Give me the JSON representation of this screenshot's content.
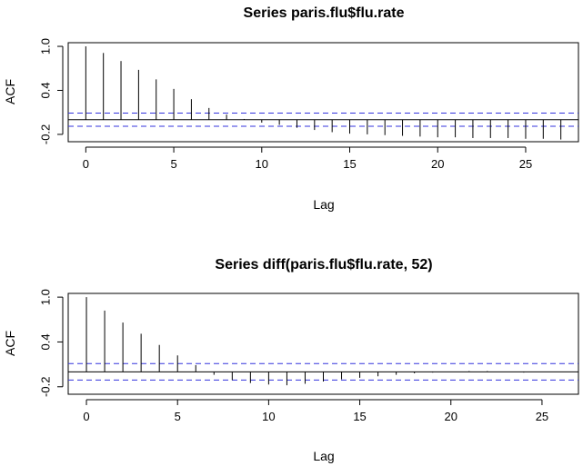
{
  "chart_data": [
    {
      "type": "bar",
      "title": "Series  paris.flu$flu.rate",
      "xlabel": "Lag",
      "ylabel": "ACF",
      "xlim": [
        -1,
        28
      ],
      "ylim": [
        -0.3,
        1.05
      ],
      "xticks": [
        0,
        5,
        10,
        15,
        20,
        25
      ],
      "xtick_labels": [
        "0",
        "5",
        "10",
        "15",
        "20",
        "25"
      ],
      "yticks": [
        -0.2,
        0.4,
        1.0
      ],
      "ytick_labels": [
        "-0.2",
        "0.4",
        "1.0"
      ],
      "conf_limit": 0.09,
      "lags": [
        0,
        1,
        2,
        3,
        4,
        5,
        6,
        7,
        8,
        9,
        10,
        11,
        12,
        13,
        14,
        15,
        16,
        17,
        18,
        19,
        20,
        21,
        22,
        23,
        24,
        25,
        26,
        27
      ],
      "acf": [
        1.0,
        0.91,
        0.8,
        0.68,
        0.55,
        0.42,
        0.28,
        0.16,
        0.07,
        0.01,
        -0.04,
        -0.07,
        -0.11,
        -0.14,
        -0.17,
        -0.19,
        -0.2,
        -0.21,
        -0.22,
        -0.23,
        -0.24,
        -0.24,
        -0.25,
        -0.25,
        -0.25,
        -0.26,
        -0.26,
        -0.27
      ]
    },
    {
      "type": "bar",
      "title": "Series  diff(paris.flu$flu.rate, 52)",
      "xlabel": "Lag",
      "ylabel": "ACF",
      "xlim": [
        -1,
        27
      ],
      "ylim": [
        -0.3,
        1.05
      ],
      "xticks": [
        0,
        5,
        10,
        15,
        20,
        25
      ],
      "xtick_labels": [
        "0",
        "5",
        "10",
        "15",
        "20",
        "25"
      ],
      "yticks": [
        -0.2,
        0.4,
        1.0
      ],
      "ytick_labels": [
        "-0.2",
        "0.4",
        "1.0"
      ],
      "conf_limit": 0.11,
      "lags": [
        0,
        1,
        2,
        3,
        4,
        5,
        6,
        7,
        8,
        9,
        10,
        11,
        12,
        13,
        14,
        15,
        16,
        17,
        18,
        19,
        20,
        21,
        22,
        23,
        24,
        25
      ],
      "acf": [
        1.0,
        0.82,
        0.66,
        0.51,
        0.36,
        0.22,
        0.09,
        -0.04,
        -0.11,
        -0.15,
        -0.17,
        -0.18,
        -0.16,
        -0.13,
        -0.1,
        -0.08,
        -0.06,
        -0.04,
        -0.02,
        -0.01,
        0.0,
        0.01,
        0.01,
        0.0,
        -0.01,
        0.0
      ]
    }
  ],
  "colors": {
    "conf_line": "#3333dd",
    "bars": "#000000",
    "axis": "#000000"
  }
}
